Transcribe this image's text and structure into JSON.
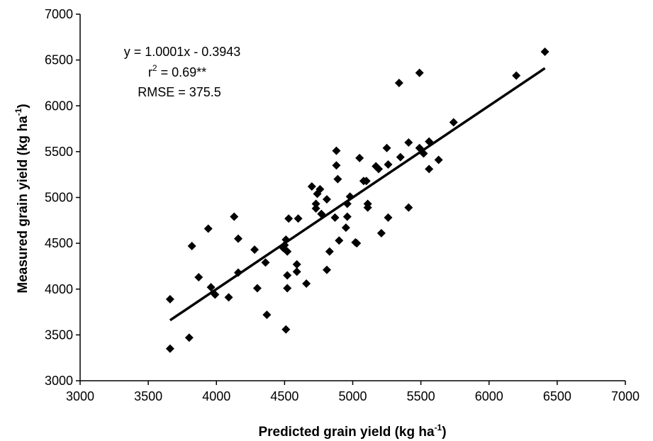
{
  "chart_data": {
    "type": "scatter",
    "title": "",
    "xlabel": {
      "text": "Predicted grain yield (kg ha",
      "sup": "-1",
      "close": ")"
    },
    "ylabel": {
      "text": "Measured grain yield (kg ha",
      "sup": "-1",
      "close": ")"
    },
    "xlim": [
      3000,
      7000
    ],
    "ylim": [
      3000,
      7000
    ],
    "xticks": [
      3000,
      3500,
      4000,
      4500,
      5000,
      5500,
      6000,
      6500,
      7000
    ],
    "yticks": [
      3000,
      3500,
      4000,
      4500,
      5000,
      5500,
      6000,
      6500,
      7000
    ],
    "grid": false,
    "annotations": {
      "equation": "y = 1.0001x - 0.3943",
      "r2_prefix": "r",
      "r2_sup": "2",
      "r2_rest": " = 0.69**",
      "rmse": "RMSE = 375.5"
    },
    "regression": {
      "slope": 1.0001,
      "intercept": -0.3943,
      "x_range": [
        3660,
        6410
      ]
    },
    "marker_color": "#000000",
    "points": [
      [
        3660,
        3890
      ],
      [
        3660,
        3350
      ],
      [
        3800,
        3470
      ],
      [
        3820,
        4470
      ],
      [
        3870,
        4130
      ],
      [
        3940,
        4660
      ],
      [
        3960,
        4020
      ],
      [
        3990,
        3940
      ],
      [
        4090,
        3910
      ],
      [
        4130,
        4790
      ],
      [
        4160,
        4550
      ],
      [
        4160,
        4180
      ],
      [
        4280,
        4430
      ],
      [
        4300,
        4010
      ],
      [
        4360,
        4290
      ],
      [
        4370,
        3720
      ],
      [
        4490,
        4450
      ],
      [
        4500,
        4480
      ],
      [
        4510,
        3560
      ],
      [
        4510,
        4540
      ],
      [
        4520,
        4410
      ],
      [
        4520,
        4150
      ],
      [
        4520,
        4010
      ],
      [
        4530,
        4770
      ],
      [
        4590,
        4270
      ],
      [
        4590,
        4190
      ],
      [
        4600,
        4770
      ],
      [
        4660,
        4060
      ],
      [
        4700,
        5120
      ],
      [
        4730,
        4930
      ],
      [
        4730,
        4880
      ],
      [
        4740,
        5040
      ],
      [
        4760,
        5090
      ],
      [
        4770,
        4820
      ],
      [
        4810,
        4980
      ],
      [
        4810,
        4210
      ],
      [
        4830,
        4410
      ],
      [
        4870,
        4780
      ],
      [
        4880,
        5510
      ],
      [
        4880,
        5350
      ],
      [
        4890,
        5200
      ],
      [
        4900,
        4530
      ],
      [
        4950,
        4670
      ],
      [
        4960,
        4790
      ],
      [
        4960,
        4930
      ],
      [
        4980,
        5010
      ],
      [
        5020,
        4510
      ],
      [
        5030,
        4500
      ],
      [
        5050,
        5430
      ],
      [
        5080,
        5180
      ],
      [
        5100,
        5180
      ],
      [
        5110,
        4890
      ],
      [
        5110,
        4930
      ],
      [
        5170,
        5340
      ],
      [
        5190,
        5310
      ],
      [
        5210,
        4610
      ],
      [
        5250,
        5540
      ],
      [
        5260,
        5360
      ],
      [
        5260,
        4780
      ],
      [
        5340,
        6250
      ],
      [
        5350,
        5440
      ],
      [
        5410,
        5600
      ],
      [
        5410,
        4890
      ],
      [
        5490,
        5540
      ],
      [
        5490,
        6360
      ],
      [
        5520,
        5480
      ],
      [
        5560,
        5610
      ],
      [
        5560,
        5310
      ],
      [
        5630,
        5410
      ],
      [
        5740,
        5820
      ],
      [
        6200,
        6330
      ],
      [
        6410,
        6590
      ]
    ]
  }
}
